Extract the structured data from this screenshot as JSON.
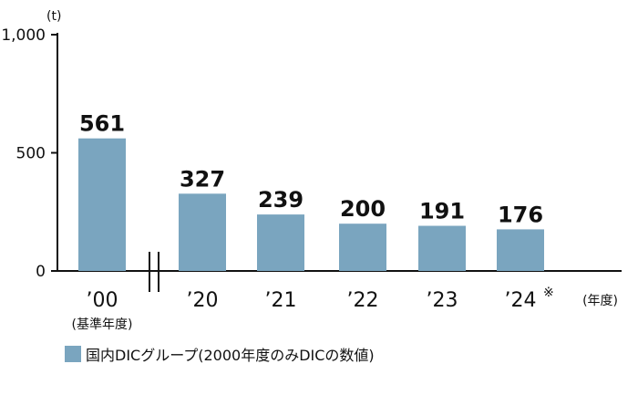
{
  "chart_data": {
    "type": "bar",
    "unit": "(t)",
    "yticks": [
      "1,000",
      "500",
      "0"
    ],
    "ylim": [
      0,
      1000
    ],
    "categories": [
      "’00",
      "’20",
      "’21",
      "’22",
      "’23",
      "’24"
    ],
    "category_notes": [
      "",
      "",
      "",
      "",
      "",
      "※"
    ],
    "category_sublabel": "(基準年度)",
    "xaxis_unit": "(年度)",
    "values": [
      561,
      327,
      239,
      200,
      191,
      176
    ],
    "value_labels": [
      "561",
      "327",
      "239",
      "200",
      "191",
      "176"
    ],
    "series": [
      {
        "name": "国内DICグループ(2000年度のみDICの数値)",
        "values": [
          561,
          327,
          239,
          200,
          191,
          176
        ],
        "color": "#7aa5bf"
      }
    ],
    "axis_break": true,
    "grid": false,
    "legend_position": "bottom-left"
  }
}
